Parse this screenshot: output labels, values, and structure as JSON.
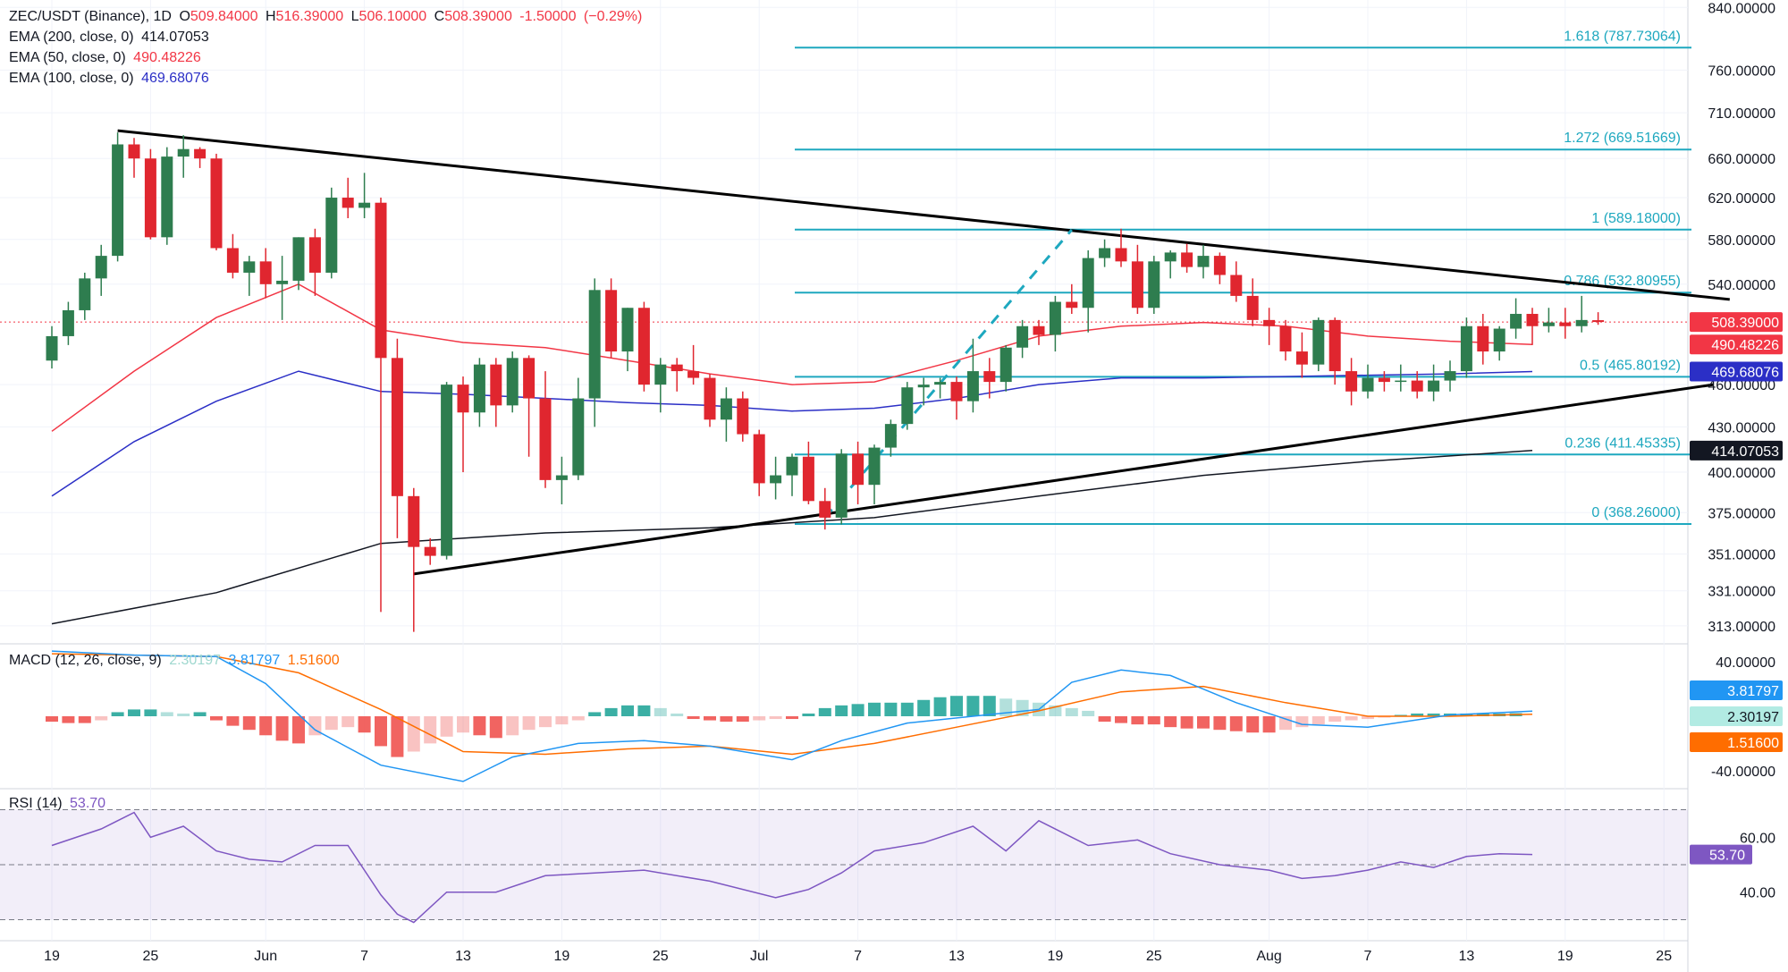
{
  "chart_data": {
    "type": "candlestick",
    "symbol_label": "ZEC/USDT (Binance), 1D",
    "ohlc_readout": {
      "O": "509.84000",
      "H": "516.39000",
      "L": "506.10000",
      "C": "508.39000",
      "change": "-1.50000",
      "change_pct": "(−0.29%)"
    },
    "indicators": [
      {
        "label": "EMA (200, close, 0)",
        "value": "414.07053",
        "color": "#131722"
      },
      {
        "label": "EMA (50, close, 0)",
        "value": "490.48226",
        "color": "#f23645"
      },
      {
        "label": "EMA (100, close, 0)",
        "value": "469.68076",
        "color": "#2b2fc6"
      }
    ],
    "price_axis": {
      "ticks": [
        "840.00000",
        "760.00000",
        "710.00000",
        "660.00000",
        "620.00000",
        "580.00000",
        "540.00000",
        "460.00000",
        "430.00000",
        "400.00000",
        "375.00000",
        "351.00000",
        "331.00000",
        "313.00000"
      ],
      "scale": "log",
      "range": [
        305,
        850
      ]
    },
    "x_axis": {
      "ticks": [
        {
          "label": "19",
          "index": 0
        },
        {
          "label": "25",
          "index": 6
        },
        {
          "label": "Jun",
          "index": 13
        },
        {
          "label": "7",
          "index": 19
        },
        {
          "label": "13",
          "index": 25
        },
        {
          "label": "19",
          "index": 31
        },
        {
          "label": "25",
          "index": 37
        },
        {
          "label": "Jul",
          "index": 43
        },
        {
          "label": "7",
          "index": 49
        },
        {
          "label": "13",
          "index": 55
        },
        {
          "label": "19",
          "index": 61
        },
        {
          "label": "25",
          "index": 67
        },
        {
          "label": "Aug",
          "index": 74
        },
        {
          "label": "7",
          "index": 80
        },
        {
          "label": "13",
          "index": 86
        },
        {
          "label": "19",
          "index": 92
        },
        {
          "label": "25",
          "index": 98
        }
      ]
    },
    "candles": [
      [
        478,
        505,
        472,
        497
      ],
      [
        497,
        525,
        490,
        518
      ],
      [
        518,
        550,
        510,
        545
      ],
      [
        545,
        575,
        530,
        565
      ],
      [
        565,
        688,
        560,
        675
      ],
      [
        675,
        682,
        640,
        660
      ],
      [
        660,
        670,
        580,
        582
      ],
      [
        582,
        672,
        575,
        662
      ],
      [
        662,
        685,
        640,
        670
      ],
      [
        670,
        672,
        650,
        660
      ],
      [
        660,
        665,
        570,
        572
      ],
      [
        572,
        585,
        545,
        550
      ],
      [
        550,
        565,
        530,
        560
      ],
      [
        560,
        572,
        528,
        540
      ],
      [
        540,
        565,
        510,
        543
      ],
      [
        543,
        582,
        535,
        582
      ],
      [
        582,
        590,
        530,
        550
      ],
      [
        550,
        630,
        545,
        620
      ],
      [
        620,
        640,
        600,
        610
      ],
      [
        610,
        645,
        600,
        615
      ],
      [
        615,
        620,
        320,
        480
      ],
      [
        480,
        495,
        360,
        385
      ],
      [
        385,
        390,
        310,
        355
      ],
      [
        355,
        360,
        345,
        350
      ],
      [
        350,
        462,
        348,
        460
      ],
      [
        460,
        466,
        400,
        440
      ],
      [
        440,
        480,
        430,
        475
      ],
      [
        475,
        480,
        430,
        445
      ],
      [
        445,
        485,
        440,
        480
      ],
      [
        480,
        482,
        410,
        450
      ],
      [
        450,
        470,
        390,
        395
      ],
      [
        395,
        410,
        380,
        398
      ],
      [
        398,
        465,
        395,
        450
      ],
      [
        450,
        545,
        430,
        535
      ],
      [
        535,
        545,
        480,
        485
      ],
      [
        485,
        520,
        470,
        520
      ],
      [
        520,
        525,
        455,
        460
      ],
      [
        460,
        480,
        440,
        475
      ],
      [
        475,
        480,
        455,
        470
      ],
      [
        470,
        490,
        460,
        465
      ],
      [
        465,
        468,
        430,
        435
      ],
      [
        435,
        458,
        420,
        450
      ],
      [
        450,
        455,
        420,
        425
      ],
      [
        425,
        428,
        385,
        393
      ],
      [
        393,
        410,
        383,
        398
      ],
      [
        398,
        412,
        385,
        410
      ],
      [
        410,
        420,
        380,
        382
      ],
      [
        382,
        390,
        365,
        372
      ],
      [
        372,
        415,
        368,
        412
      ],
      [
        412,
        420,
        380,
        392
      ],
      [
        392,
        418,
        380,
        416
      ],
      [
        416,
        435,
        410,
        432
      ],
      [
        432,
        462,
        428,
        458
      ],
      [
        458,
        465,
        445,
        460
      ],
      [
        460,
        465,
        450,
        462
      ],
      [
        462,
        466,
        435,
        448
      ],
      [
        448,
        495,
        440,
        470
      ],
      [
        470,
        480,
        450,
        462
      ],
      [
        462,
        490,
        455,
        488
      ],
      [
        488,
        510,
        480,
        505
      ],
      [
        505,
        510,
        490,
        498
      ],
      [
        498,
        530,
        485,
        525
      ],
      [
        525,
        540,
        515,
        520
      ],
      [
        520,
        570,
        500,
        563
      ],
      [
        563,
        580,
        555,
        572
      ],
      [
        572,
        590,
        555,
        560
      ],
      [
        560,
        575,
        515,
        520
      ],
      [
        520,
        565,
        515,
        560
      ],
      [
        560,
        570,
        545,
        568
      ],
      [
        568,
        576,
        550,
        555
      ],
      [
        555,
        575,
        545,
        565
      ],
      [
        565,
        568,
        540,
        548
      ],
      [
        548,
        560,
        525,
        530
      ],
      [
        530,
        545,
        505,
        510
      ],
      [
        510,
        520,
        490,
        505
      ],
      [
        505,
        510,
        478,
        485
      ],
      [
        485,
        500,
        465,
        475
      ],
      [
        475,
        512,
        470,
        510
      ],
      [
        510,
        512,
        460,
        470
      ],
      [
        470,
        480,
        445,
        455
      ],
      [
        455,
        475,
        450,
        465
      ],
      [
        465,
        470,
        455,
        462
      ],
      [
        462,
        475,
        455,
        463
      ],
      [
        463,
        470,
        450,
        455
      ],
      [
        455,
        475,
        448,
        463
      ],
      [
        463,
        478,
        455,
        470
      ],
      [
        470,
        512,
        465,
        505
      ],
      [
        505,
        515,
        475,
        485
      ],
      [
        485,
        505,
        478,
        503
      ],
      [
        503,
        528,
        495,
        515
      ],
      [
        515,
        520,
        490,
        505
      ],
      [
        505,
        520,
        500,
        508
      ],
      [
        508,
        520,
        495,
        505
      ],
      [
        505,
        530,
        500,
        510
      ],
      [
        509.84,
        516.39,
        506.1,
        508.39
      ]
    ],
    "ema200": [
      [
        0,
        314
      ],
      [
        10,
        330
      ],
      [
        20,
        357
      ],
      [
        30,
        363
      ],
      [
        40,
        366
      ],
      [
        50,
        372
      ],
      [
        60,
        385
      ],
      [
        70,
        398
      ],
      [
        80,
        407
      ],
      [
        90,
        414.07
      ]
    ],
    "ema50": [
      [
        0,
        427
      ],
      [
        5,
        470
      ],
      [
        10,
        512
      ],
      [
        15,
        540
      ],
      [
        20,
        502
      ],
      [
        25,
        492
      ],
      [
        30,
        488
      ],
      [
        35,
        478
      ],
      [
        40,
        468
      ],
      [
        45,
        460
      ],
      [
        50,
        462
      ],
      [
        55,
        478
      ],
      [
        60,
        497
      ],
      [
        65,
        505
      ],
      [
        70,
        508
      ],
      [
        75,
        505
      ],
      [
        80,
        497
      ],
      [
        85,
        493
      ],
      [
        90,
        490.48
      ]
    ],
    "ema100": [
      [
        0,
        385
      ],
      [
        5,
        420
      ],
      [
        10,
        448
      ],
      [
        15,
        470
      ],
      [
        20,
        455
      ],
      [
        25,
        453
      ],
      [
        30,
        450
      ],
      [
        35,
        447
      ],
      [
        40,
        445
      ],
      [
        45,
        441
      ],
      [
        50,
        443
      ],
      [
        55,
        450
      ],
      [
        60,
        460
      ],
      [
        65,
        465
      ],
      [
        70,
        465
      ],
      [
        75,
        466
      ],
      [
        80,
        467
      ],
      [
        85,
        468
      ],
      [
        90,
        469.68
      ]
    ],
    "trendlines": [
      {
        "from": [
          4,
          690
        ],
        "to": [
          102,
          527
        ],
        "color": "#000000"
      },
      {
        "from": [
          22,
          340
        ],
        "to": [
          101,
          460
        ],
        "color": "#000000"
      }
    ],
    "fib_levels": [
      {
        "label": "1.618 (787.73064)",
        "value": 787.73064
      },
      {
        "label": "1.272 (669.51669)",
        "value": 669.51669
      },
      {
        "label": "1 (589.18000)",
        "value": 589.18
      },
      {
        "label": "0.786 (532.80955)",
        "value": 532.80955
      },
      {
        "label": "0.5 (465.80192)",
        "value": 465.80192
      },
      {
        "label": "0.236 (411.45335)",
        "value": 411.45335
      },
      {
        "label": "0 (368.26000)",
        "value": 368.26
      }
    ],
    "fib_start_index": 45,
    "fib_color": "#1ea8bf",
    "dashed_projection": [
      [
        47,
        372
      ],
      [
        62,
        589
      ]
    ],
    "price_badges": [
      {
        "value": 508.39,
        "text": "508.39000",
        "bg": "#f23645",
        "dotted": true
      },
      {
        "value": 490.48226,
        "text": "490.48226",
        "bg": "#f23645"
      },
      {
        "value": 469.68076,
        "text": "469.68076",
        "bg": "#2b2fc6"
      },
      {
        "value": 414.07053,
        "text": "414.07053",
        "bg": "#131722"
      }
    ],
    "macd": {
      "label": "MACD (12, 26, close, 9)",
      "values": {
        "hist": "2.30197",
        "macd": "3.81797",
        "signal": "1.51600"
      },
      "colors": {
        "hist": "#7ee6d2",
        "macd": "#2196f3",
        "signal": "#ff6d00"
      },
      "ticks": [
        "40.00000",
        "-40.00000"
      ],
      "range": [
        -52,
        52
      ],
      "macd_line": [
        [
          0,
          48
        ],
        [
          5,
          45
        ],
        [
          10,
          44
        ],
        [
          13,
          24
        ],
        [
          16,
          -10
        ],
        [
          20,
          -36
        ],
        [
          25,
          -48
        ],
        [
          28,
          -30
        ],
        [
          32,
          -20
        ],
        [
          36,
          -18
        ],
        [
          40,
          -22
        ],
        [
          45,
          -32
        ],
        [
          48,
          -18
        ],
        [
          52,
          -5
        ],
        [
          56,
          0
        ],
        [
          60,
          5
        ],
        [
          62,
          25
        ],
        [
          65,
          34
        ],
        [
          68,
          30
        ],
        [
          72,
          10
        ],
        [
          76,
          -6
        ],
        [
          80,
          -8
        ],
        [
          85,
          1
        ],
        [
          90,
          3.82
        ]
      ],
      "signal_line": [
        [
          0,
          46
        ],
        [
          10,
          44
        ],
        [
          15,
          32
        ],
        [
          20,
          5
        ],
        [
          25,
          -26
        ],
        [
          30,
          -28
        ],
        [
          35,
          -24
        ],
        [
          40,
          -22
        ],
        [
          45,
          -28
        ],
        [
          50,
          -20
        ],
        [
          55,
          -8
        ],
        [
          60,
          4
        ],
        [
          65,
          18
        ],
        [
          70,
          22
        ],
        [
          75,
          10
        ],
        [
          80,
          0
        ],
        [
          85,
          0
        ],
        [
          90,
          1.52
        ]
      ],
      "histogram": [
        -4,
        -5,
        -5,
        -3,
        3,
        5,
        5,
        3,
        2,
        3,
        -3,
        -7,
        -10,
        -14,
        -18,
        -20,
        -14,
        -10,
        -8,
        -12,
        -22,
        -30,
        -26,
        -20,
        -15,
        -12,
        -14,
        -16,
        -14,
        -10,
        -8,
        -6,
        -3,
        3,
        6,
        8,
        8,
        6,
        2,
        -2,
        -3,
        -4,
        -4,
        -3,
        -2,
        -2,
        2,
        6,
        8,
        9,
        10,
        10,
        10,
        12,
        14,
        15,
        15,
        15,
        13,
        12,
        10,
        8,
        6,
        4,
        -4,
        -5,
        -6,
        -6,
        -8,
        -9,
        -9,
        -10,
        -11,
        -12,
        -12,
        -10,
        -8,
        -6,
        -4,
        -3,
        -2,
        -1,
        1,
        2,
        2,
        2,
        2,
        2,
        2,
        2.3
      ]
    },
    "rsi": {
      "label": "RSI (14)",
      "value": "53.70",
      "color": "#7e57c2",
      "ticks": [
        "60.00",
        "40.00"
      ],
      "bands": [
        70,
        30
      ],
      "midline": 50,
      "range": [
        23,
        77
      ],
      "line": [
        [
          0,
          57
        ],
        [
          3,
          63
        ],
        [
          5,
          69
        ],
        [
          6,
          60
        ],
        [
          8,
          64
        ],
        [
          10,
          55
        ],
        [
          12,
          52
        ],
        [
          14,
          51
        ],
        [
          16,
          57
        ],
        [
          18,
          57
        ],
        [
          20,
          39
        ],
        [
          21,
          32
        ],
        [
          22,
          29
        ],
        [
          24,
          40
        ],
        [
          27,
          40
        ],
        [
          30,
          46
        ],
        [
          33,
          47
        ],
        [
          36,
          48
        ],
        [
          40,
          44
        ],
        [
          44,
          38
        ],
        [
          46,
          41
        ],
        [
          48,
          47
        ],
        [
          50,
          55
        ],
        [
          53,
          58
        ],
        [
          56,
          64
        ],
        [
          58,
          55
        ],
        [
          60,
          66
        ],
        [
          62,
          60
        ],
        [
          63,
          57
        ],
        [
          66,
          59
        ],
        [
          68,
          54
        ],
        [
          71,
          50
        ],
        [
          74,
          48
        ],
        [
          76,
          45
        ],
        [
          78,
          46
        ],
        [
          80,
          48
        ],
        [
          82,
          51
        ],
        [
          84,
          49
        ],
        [
          86,
          53
        ],
        [
          88,
          54
        ],
        [
          90,
          53.7
        ]
      ]
    }
  }
}
